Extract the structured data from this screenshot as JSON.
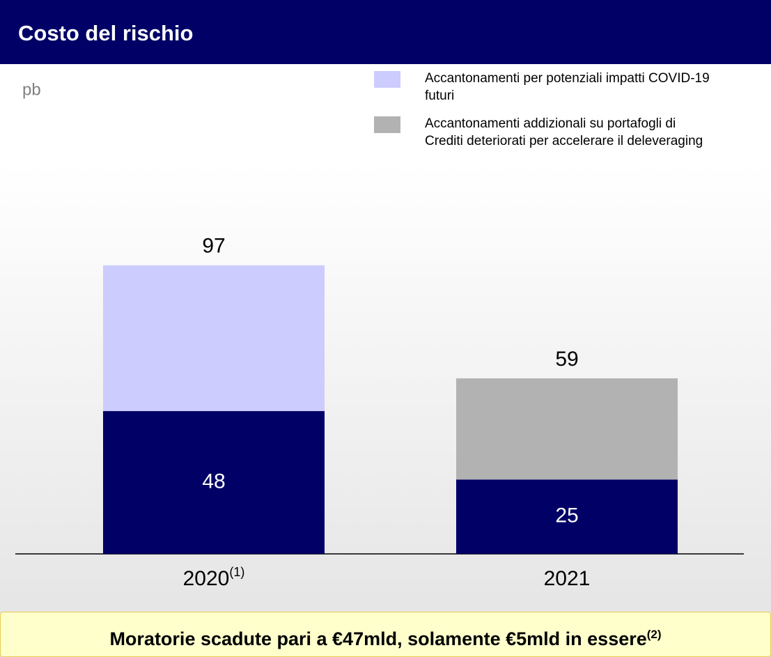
{
  "chart_data": {
    "type": "stacked_bar",
    "title": "Costo del rischio",
    "unit_label": "pb",
    "categories": [
      "2020",
      "2021"
    ],
    "category_notes": [
      "(1)",
      null
    ],
    "series": [
      {
        "color": "#000066",
        "values": [
          48,
          25
        ]
      },
      {
        "name": "Accantonamenti per potenziali impatti COVID-19 futuri",
        "color": "#ccccff",
        "values": [
          49,
          null
        ]
      },
      {
        "name": "Accantonamenti addizionali su portafogli di Crediti deteriorati per accelerare il deleveraging",
        "color": "#b2b2b2",
        "values": [
          null,
          34
        ]
      }
    ],
    "totals": [
      97,
      59
    ],
    "ylim": [
      0,
      100
    ],
    "footer": {
      "text": "Moratorie scadute pari a €47mld, solamente €5mld in essere",
      "note": "(2)"
    }
  }
}
